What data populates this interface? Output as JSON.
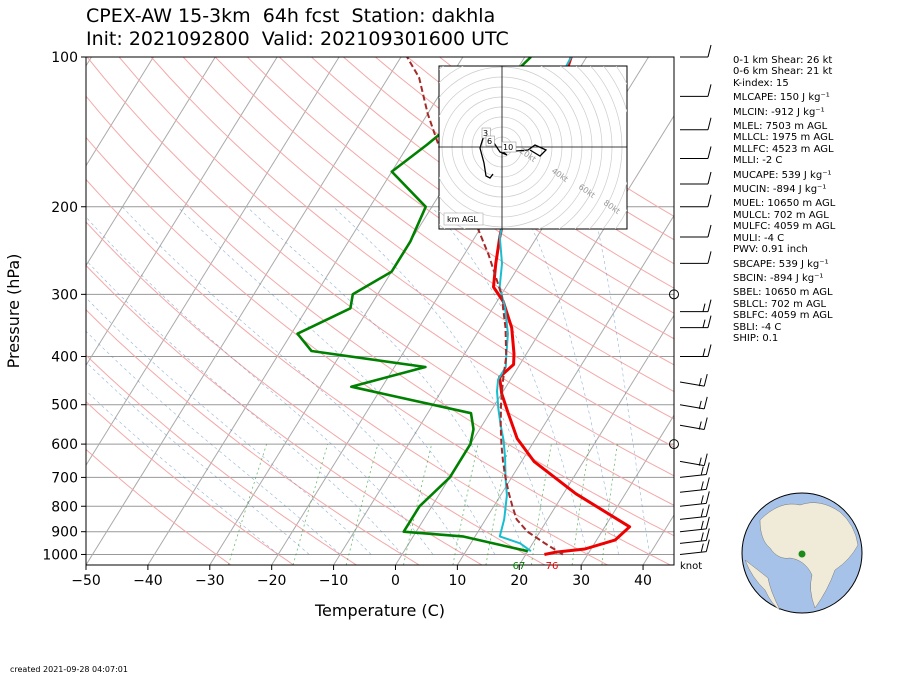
{
  "title_line1": "CPEX-AW 15-3km  64h fcst  Station: dakhla",
  "title_line2": "Init: 2021092800  Valid: 202109301600 UTC",
  "created": "created 2021-09-28 04:07:01",
  "indices": [
    "0-1 km Shear: 26 kt",
    "0-6 km Shear: 21 kt",
    "K-index: 15",
    "MLCAPE: 150 J kg⁻¹",
    "MLCIN: -912 J kg⁻¹",
    "MLEL: 7503 m AGL",
    "MLLCL: 1975 m AGL",
    "MLLFC: 4523 m AGL",
    "MLLI: -2 C",
    "MUCAPE: 539 J kg⁻¹",
    "MUCIN: -894 J kg⁻¹",
    "MUEL: 10650 m AGL",
    "MULCL: 702 m AGL",
    "MULFC: 4059 m AGL",
    "MULI: -4 C",
    "PWV: 0.91 inch",
    "SBCAPE: 539 J kg⁻¹",
    "SBCIN: -894 J kg⁻¹",
    "SBEL: 10650 m AGL",
    "SBLCL: 702 m AGL",
    "SBLFC: 4059 m AGL",
    "SBLI: -4 C",
    "SHIP: 0.1"
  ],
  "hodograph": {
    "axis_label": "km AGL",
    "ring_labels": [
      "20kt",
      "40kt",
      "60kt",
      "80kt"
    ],
    "height_labels": [
      "3",
      "6",
      "10"
    ]
  },
  "wind_unit": "knot",
  "surface_labels": {
    "dewpoint": "67",
    "temperature": "76"
  },
  "colors": {
    "temperature": "#ee0000",
    "dewpoint": "#008000",
    "wetbulb": "#17becf",
    "parcel": "#a52a2a",
    "dry_adiabat": "#f4a8a8",
    "mixing_ratio": "#2ca02c",
    "isobar": "#999999"
  },
  "chart_data": {
    "type": "line",
    "xlabel": "Temperature (C)",
    "ylabel": "Pressure (hPa)",
    "xlim": [
      -50,
      45
    ],
    "ylim": [
      1050,
      100
    ],
    "y_scale": "log",
    "x_ticks": [
      -50,
      -40,
      -30,
      -20,
      -10,
      0,
      10,
      20,
      30,
      40
    ],
    "y_ticks": [
      1000,
      900,
      800,
      700,
      600,
      500,
      400,
      300,
      200,
      100
    ],
    "skew": "skew-T",
    "series": [
      {
        "key": "temperature",
        "points": [
          [
            23,
            1000
          ],
          [
            24.5,
            990
          ],
          [
            29,
            975
          ],
          [
            33,
            935
          ],
          [
            34,
            880
          ],
          [
            22,
            755
          ],
          [
            12,
            650
          ],
          [
            7,
            585
          ],
          [
            3,
            520
          ],
          [
            0,
            475
          ],
          [
            -2,
            440
          ],
          [
            -1,
            415
          ],
          [
            -2,
            395
          ],
          [
            -5,
            350
          ],
          [
            -9,
            310
          ],
          [
            -12,
            290
          ],
          [
            -14,
            260
          ],
          [
            -16,
            230
          ],
          [
            -18,
            200
          ],
          [
            -18.5,
            180
          ],
          [
            -19,
            160
          ],
          [
            -20,
            140
          ],
          [
            -21.5,
            120
          ],
          [
            -22,
            105
          ],
          [
            -22.5,
            100
          ]
        ]
      },
      {
        "key": "dewpoint",
        "points": [
          [
            20,
            985
          ],
          [
            8,
            920
          ],
          [
            -2,
            900
          ],
          [
            -2,
            800
          ],
          [
            0,
            700
          ],
          [
            0,
            600
          ],
          [
            -1,
            560
          ],
          [
            -3,
            520
          ],
          [
            -25,
            460
          ],
          [
            -15,
            420
          ],
          [
            -35,
            390
          ],
          [
            -39,
            360
          ],
          [
            -33,
            320
          ],
          [
            -34,
            300
          ],
          [
            -30,
            270
          ],
          [
            -30,
            235
          ],
          [
            -31,
            200
          ],
          [
            -40,
            170
          ],
          [
            -37,
            150
          ],
          [
            -34,
            130
          ],
          [
            -31,
            115
          ],
          [
            -29,
            100
          ]
        ]
      },
      {
        "key": "wetbulb",
        "points": [
          [
            20.5,
            985
          ],
          [
            18,
            950
          ],
          [
            14,
            920
          ],
          [
            13,
            850
          ],
          [
            11,
            760
          ],
          [
            9,
            700
          ],
          [
            7,
            640
          ],
          [
            5,
            590
          ],
          [
            3,
            550
          ],
          [
            1,
            510
          ],
          [
            -1,
            470
          ],
          [
            -2,
            445
          ],
          [
            -2,
            420
          ],
          [
            -3,
            400
          ],
          [
            -5,
            360
          ],
          [
            -8,
            320
          ],
          [
            -11,
            290
          ],
          [
            -13,
            260
          ],
          [
            -16,
            230
          ],
          [
            -18,
            200
          ],
          [
            -19,
            180
          ],
          [
            -19.5,
            160
          ],
          [
            -21,
            140
          ],
          [
            -22,
            120
          ],
          [
            -22.5,
            100
          ]
        ]
      },
      {
        "key": "parcel",
        "points": [
          [
            26,
            1000
          ],
          [
            22,
            950
          ],
          [
            18,
            900
          ],
          [
            15,
            850
          ],
          [
            13,
            800
          ],
          [
            11,
            750
          ],
          [
            9,
            700
          ],
          [
            7,
            650
          ],
          [
            5,
            600
          ],
          [
            3,
            550
          ],
          [
            1,
            500
          ],
          [
            -1,
            450
          ],
          [
            -3,
            400
          ],
          [
            -6,
            350
          ],
          [
            -10,
            300
          ],
          [
            -16,
            250
          ],
          [
            -24,
            200
          ],
          [
            -33,
            160
          ],
          [
            -40,
            130
          ],
          [
            -45,
            110
          ],
          [
            -49,
            100
          ]
        ]
      }
    ],
    "wind_barb_levels_hpa": [
      1000,
      950,
      900,
      850,
      800,
      750,
      700,
      650,
      600,
      550,
      500,
      450,
      400,
      350,
      325,
      300,
      260,
      230,
      200,
      180,
      160,
      140,
      120,
      100
    ],
    "calm_levels_hpa": [
      600,
      390,
      360,
      330,
      300
    ]
  }
}
